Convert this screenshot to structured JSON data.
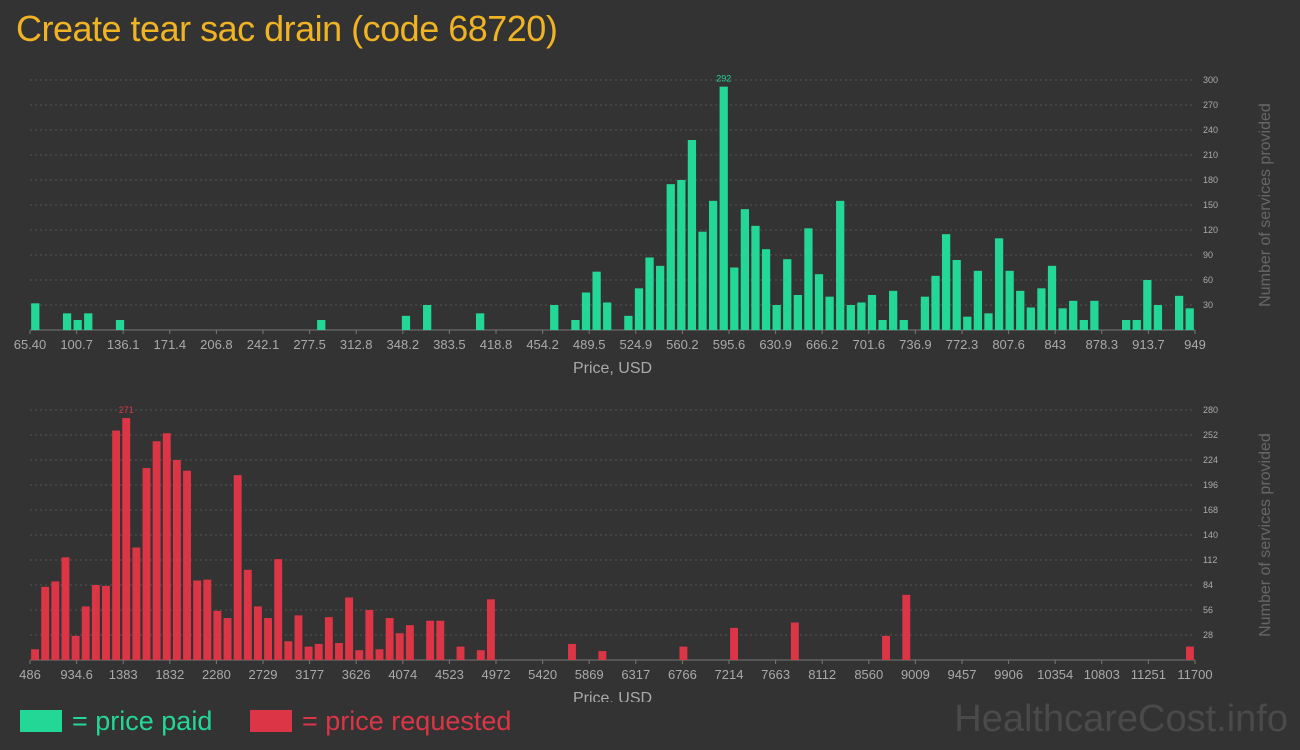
{
  "title": "Create tear sac drain (code 68720)",
  "legend": {
    "paid": {
      "label": "= price paid",
      "color": "#23d897"
    },
    "requested": {
      "label": "= price requested",
      "color": "#dc3545"
    }
  },
  "watermark": "HealthcareCost.info",
  "colors": {
    "background": "#333333",
    "title": "#f0b323",
    "grid": "#555555",
    "axis_text": "#aaaaaa"
  },
  "chart_data": [
    {
      "type": "bar",
      "id": "paid",
      "xlabel": "Price, USD",
      "ylabel": "Number of services provided",
      "ylim": [
        0,
        300
      ],
      "yticks": [
        30,
        60,
        90,
        120,
        150,
        180,
        210,
        240,
        270,
        300
      ],
      "x_tick_labels": [
        "65.40",
        "100.7",
        "136.1",
        "171.4",
        "206.8",
        "242.1",
        "277.5",
        "312.8",
        "348.2",
        "383.5",
        "418.8",
        "454.2",
        "489.5",
        "524.9",
        "560.2",
        "595.6",
        "630.9",
        "666.2",
        "701.6",
        "736.9",
        "772.3",
        "807.6",
        "843",
        "878.3",
        "913.7",
        "949"
      ],
      "peak_label": "292",
      "color": "#23d897",
      "grid": true,
      "values": [
        32,
        0,
        0,
        20,
        12,
        20,
        0,
        0,
        12,
        0,
        0,
        0,
        0,
        0,
        0,
        0,
        0,
        0,
        0,
        0,
        0,
        0,
        0,
        0,
        0,
        0,
        0,
        12,
        0,
        0,
        0,
        0,
        0,
        0,
        0,
        17,
        0,
        30,
        0,
        0,
        0,
        0,
        20,
        0,
        0,
        0,
        0,
        0,
        0,
        30,
        0,
        12,
        45,
        70,
        33,
        0,
        17,
        50,
        87,
        77,
        175,
        180,
        228,
        118,
        155,
        292,
        75,
        145,
        125,
        97,
        30,
        85,
        42,
        122,
        67,
        40,
        155,
        30,
        33,
        42,
        12,
        47,
        12,
        0,
        40,
        65,
        115,
        84,
        16,
        71,
        20,
        110,
        71,
        47,
        27,
        50,
        77,
        26,
        35,
        12,
        35,
        0,
        0,
        12,
        12,
        60,
        30,
        0,
        41,
        26
      ]
    },
    {
      "type": "bar",
      "id": "requested",
      "xlabel": "Price, USD",
      "ylabel": "Number of services provided",
      "ylim": [
        0,
        280
      ],
      "yticks": [
        28,
        56,
        84,
        112,
        140,
        168,
        196,
        224,
        252,
        280
      ],
      "x_tick_labels": [
        "486",
        "934.6",
        "1383",
        "1832",
        "2280",
        "2729",
        "3177",
        "3626",
        "4074",
        "4523",
        "4972",
        "5420",
        "5869",
        "6317",
        "6766",
        "7214",
        "7663",
        "8112",
        "8560",
        "9009",
        "9457",
        "9906",
        "10354",
        "10803",
        "11251",
        "11700"
      ],
      "peak_label": "271",
      "color": "#dc3545",
      "grid": true,
      "values": [
        12,
        82,
        88,
        115,
        27,
        60,
        84,
        83,
        257,
        271,
        126,
        215,
        245,
        254,
        224,
        212,
        89,
        90,
        55,
        47,
        207,
        101,
        60,
        47,
        113,
        21,
        50,
        15,
        18,
        48,
        19,
        70,
        11,
        56,
        12,
        47,
        30,
        39,
        0,
        44,
        44,
        0,
        15,
        0,
        11,
        68,
        0,
        0,
        0,
        0,
        0,
        0,
        0,
        18,
        0,
        0,
        10,
        0,
        0,
        0,
        0,
        0,
        0,
        0,
        15,
        0,
        0,
        0,
        0,
        36,
        0,
        0,
        0,
        0,
        0,
        42,
        0,
        0,
        0,
        0,
        0,
        0,
        0,
        0,
        27,
        0,
        73,
        0,
        0,
        0,
        0,
        0,
        0,
        0,
        0,
        0,
        0,
        0,
        0,
        0,
        0,
        0,
        0,
        0,
        0,
        0,
        0,
        0,
        0,
        0,
        0,
        0,
        0,
        0,
        15
      ]
    }
  ]
}
